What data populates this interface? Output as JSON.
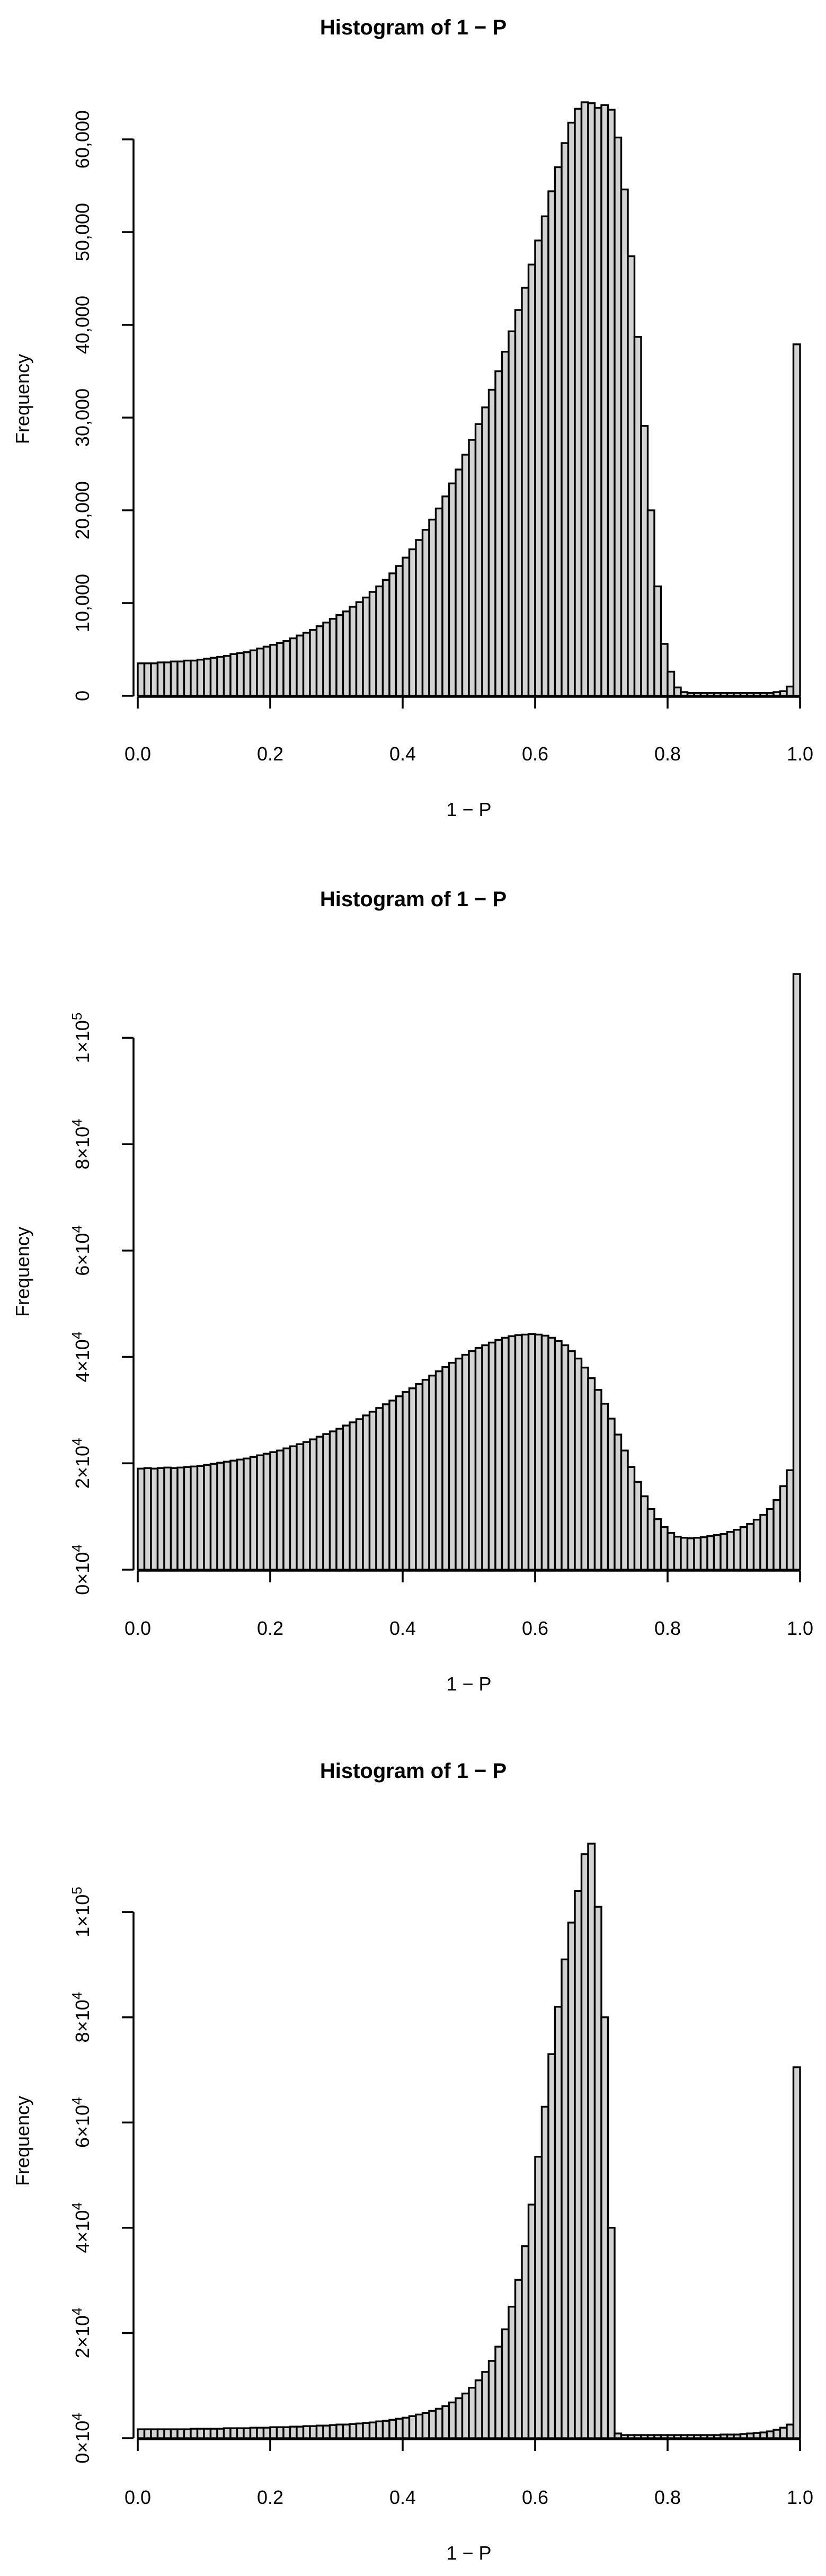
{
  "chart_data": [
    {
      "type": "bar",
      "title": "Histogram of 1 − P",
      "xlabel": "1 − P",
      "ylabel": "Frequency",
      "bin_width": 0.01,
      "xlim": [
        0,
        1
      ],
      "ylim": [
        0,
        64000
      ],
      "x_ticks": [
        0,
        0.2,
        0.4,
        0.6,
        0.8,
        1.0
      ],
      "x_tick_labels": [
        "0.0",
        "0.2",
        "0.4",
        "0.6",
        "0.8",
        "1.0"
      ],
      "y_ticks": [
        0,
        10000,
        20000,
        30000,
        40000,
        50000,
        60000
      ],
      "y_tick_labels": [
        "0",
        "10,000",
        "20,000",
        "30,000",
        "40,000",
        "50,000",
        "60,000"
      ],
      "y_tick_format": "plain",
      "values": [
        3500,
        3500,
        3500,
        3600,
        3600,
        3700,
        3700,
        3800,
        3800,
        3900,
        4000,
        4100,
        4200,
        4300,
        4500,
        4600,
        4700,
        4900,
        5100,
        5300,
        5500,
        5700,
        5900,
        6200,
        6500,
        6800,
        7100,
        7500,
        7900,
        8300,
        8700,
        9100,
        9600,
        10100,
        10600,
        11200,
        11800,
        12500,
        13200,
        14000,
        14900,
        15800,
        16800,
        17900,
        19000,
        20200,
        21500,
        22900,
        24400,
        26000,
        27600,
        29300,
        31100,
        33000,
        35000,
        37100,
        39300,
        41600,
        44000,
        46500,
        49100,
        51700,
        54400,
        57000,
        59600,
        61800,
        63300,
        64000,
        63900,
        63400,
        63700,
        63200,
        60200,
        54600,
        47400,
        38700,
        29100,
        20000,
        11800,
        5600,
        2600,
        900,
        400,
        300,
        300,
        300,
        300,
        300,
        300,
        300,
        300,
        300,
        300,
        300,
        300,
        300,
        400,
        500,
        1000,
        37900
      ]
    },
    {
      "type": "bar",
      "title": "Histogram of 1 − P",
      "xlabel": "1 − P",
      "ylabel": "Frequency",
      "bin_width": 0.01,
      "xlim": [
        0,
        1
      ],
      "ylim": [
        0,
        112000
      ],
      "x_ticks": [
        0,
        0.2,
        0.4,
        0.6,
        0.8,
        1.0
      ],
      "x_tick_labels": [
        "0.0",
        "0.2",
        "0.4",
        "0.6",
        "0.8",
        "1.0"
      ],
      "y_ticks": [
        0,
        20000,
        40000,
        60000,
        80000,
        100000
      ],
      "y_tick_labels": [
        [
          "0",
          "4"
        ],
        [
          "2",
          "4"
        ],
        [
          "4",
          "4"
        ],
        [
          "6",
          "4"
        ],
        [
          "8",
          "4"
        ],
        [
          "1",
          "5"
        ]
      ],
      "y_tick_format": "sci",
      "values": [
        19000,
        19100,
        19000,
        19100,
        19200,
        19100,
        19200,
        19300,
        19400,
        19500,
        19700,
        19900,
        20100,
        20300,
        20500,
        20700,
        20900,
        21200,
        21500,
        21800,
        22100,
        22400,
        22800,
        23200,
        23600,
        24000,
        24500,
        25000,
        25500,
        26000,
        26500,
        27100,
        27700,
        28300,
        29000,
        29700,
        30400,
        31100,
        31800,
        32600,
        33400,
        34100,
        34900,
        35700,
        36500,
        37300,
        38100,
        38900,
        39700,
        40400,
        41100,
        41700,
        42200,
        42700,
        43200,
        43600,
        43900,
        44100,
        44200,
        44300,
        44200,
        44000,
        43600,
        43000,
        42200,
        41100,
        39700,
        38000,
        36000,
        33800,
        31200,
        28400,
        25400,
        22400,
        19300,
        16500,
        13800,
        11400,
        9500,
        8000,
        6900,
        6200,
        6000,
        5900,
        6000,
        6100,
        6300,
        6500,
        6700,
        7100,
        7500,
        8000,
        8600,
        9400,
        10300,
        11400,
        13100,
        15700,
        18700,
        112000
      ]
    },
    {
      "type": "bar",
      "title": "Histogram of 1 − P",
      "xlabel": "1 − P",
      "ylabel": "Frequency",
      "bin_width": 0.01,
      "xlim": [
        0,
        1
      ],
      "ylim": [
        0,
        113000
      ],
      "x_ticks": [
        0,
        0.2,
        0.4,
        0.6,
        0.8,
        1.0
      ],
      "x_tick_labels": [
        "0.0",
        "0.2",
        "0.4",
        "0.6",
        "0.8",
        "1.0"
      ],
      "y_ticks": [
        0,
        20000,
        40000,
        60000,
        80000,
        100000
      ],
      "y_tick_labels": [
        [
          "0",
          "4"
        ],
        [
          "2",
          "4"
        ],
        [
          "4",
          "4"
        ],
        [
          "6",
          "4"
        ],
        [
          "8",
          "4"
        ],
        [
          "1",
          "5"
        ]
      ],
      "y_tick_format": "sci",
      "values": [
        1700,
        1700,
        1700,
        1700,
        1700,
        1700,
        1700,
        1700,
        1800,
        1800,
        1800,
        1800,
        1800,
        1900,
        1900,
        1900,
        1900,
        2000,
        2000,
        2000,
        2100,
        2100,
        2100,
        2200,
        2200,
        2300,
        2300,
        2400,
        2400,
        2500,
        2600,
        2600,
        2700,
        2800,
        2900,
        3000,
        3200,
        3300,
        3500,
        3700,
        3900,
        4200,
        4500,
        4800,
        5200,
        5600,
        6100,
        6800,
        7600,
        8500,
        9600,
        11000,
        12600,
        14700,
        17400,
        20700,
        25000,
        30100,
        36500,
        44400,
        53500,
        63000,
        73000,
        82000,
        91000,
        98000,
        104000,
        111000,
        113000,
        101000,
        80000,
        40000,
        900,
        600,
        600,
        600,
        600,
        600,
        600,
        600,
        600,
        600,
        600,
        600,
        600,
        600,
        600,
        600,
        700,
        700,
        700,
        800,
        900,
        1000,
        1100,
        1300,
        1600,
        2000,
        2600,
        70500
      ]
    }
  ]
}
